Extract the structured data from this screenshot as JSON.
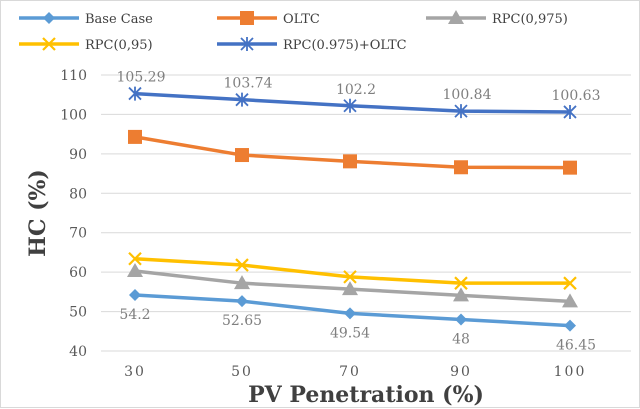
{
  "chart_data": {
    "type": "line",
    "title": "",
    "xlabel": "PV Penetration (%)",
    "ylabel": "HC (%)",
    "categories": [
      "30",
      "50",
      "70",
      "90",
      "100"
    ],
    "ylim": [
      40,
      110
    ],
    "yticks": [
      40,
      50,
      60,
      70,
      80,
      90,
      100,
      110
    ],
    "grid": true,
    "legend_position": "top",
    "series": [
      {
        "name": "Base Case",
        "color": "#5b9bd5",
        "marker": "diamond",
        "values": [
          54.2,
          52.65,
          49.54,
          48,
          46.45
        ],
        "labels": [
          "54.2",
          "52.65",
          "49.54",
          "48",
          "46.45"
        ]
      },
      {
        "name": "OLTC",
        "color": "#ed7d31",
        "marker": "square",
        "values": [
          94.3,
          89.7,
          88.1,
          86.6,
          86.5
        ]
      },
      {
        "name": "RPC(0,975)",
        "color": "#a5a5a5",
        "marker": "triangle",
        "values": [
          60.3,
          57.2,
          55.7,
          54.1,
          52.6
        ]
      },
      {
        "name": "RPC(0,95)",
        "color": "#ffc000",
        "marker": "x",
        "values": [
          63.4,
          61.8,
          58.8,
          57.2,
          57.2
        ]
      },
      {
        "name": "RPC(0.975)+OLTC",
        "color": "#4472c4",
        "marker": "star",
        "values": [
          105.29,
          103.74,
          102.2,
          100.84,
          100.63
        ],
        "labels": [
          "105.29",
          "103.74",
          "102.2",
          "100.84",
          "100.63"
        ]
      }
    ]
  }
}
